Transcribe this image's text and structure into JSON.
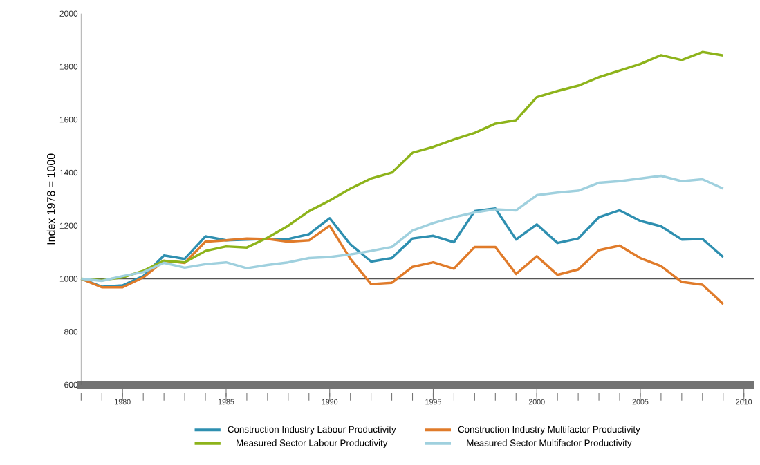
{
  "chart_data": {
    "type": "line",
    "ylabel": "Index 1978 = 1000",
    "x": [
      1978,
      1979,
      1980,
      1981,
      1982,
      1983,
      1984,
      1985,
      1986,
      1987,
      1988,
      1989,
      1990,
      1991,
      1992,
      1993,
      1994,
      1995,
      1996,
      1997,
      1998,
      1999,
      2000,
      2001,
      2002,
      2003,
      2004,
      2005,
      2006,
      2007,
      2008,
      2009
    ],
    "series": [
      {
        "name": "Construction Industry Labour Productivity",
        "color": "#2e8fb0",
        "values": [
          1000,
          970,
          975,
          1010,
          1088,
          1075,
          1160,
          1145,
          1148,
          1150,
          1150,
          1168,
          1228,
          1130,
          1065,
          1078,
          1152,
          1162,
          1138,
          1255,
          1265,
          1148,
          1205,
          1135,
          1152,
          1232,
          1258,
          1218,
          1198,
          1148,
          1150,
          1082
        ]
      },
      {
        "name": "Construction Industry Multifactor Productivity",
        "color": "#e07b2a",
        "values": [
          1000,
          968,
          968,
          1005,
          1068,
          1060,
          1140,
          1145,
          1152,
          1150,
          1140,
          1145,
          1200,
          1075,
          980,
          985,
          1045,
          1062,
          1038,
          1120,
          1120,
          1018,
          1085,
          1015,
          1035,
          1108,
          1125,
          1078,
          1048,
          988,
          978,
          905
        ]
      },
      {
        "name": "Measured Sector Labour Productivity",
        "color": "#8db31a",
        "values": [
          1000,
          995,
          1005,
          1030,
          1068,
          1062,
          1105,
          1122,
          1118,
          1155,
          1200,
          1255,
          1295,
          1340,
          1378,
          1400,
          1475,
          1497,
          1525,
          1550,
          1585,
          1598,
          1685,
          1708,
          1728,
          1760,
          1785,
          1810,
          1843,
          1825,
          1855,
          1842
        ]
      },
      {
        "name": "Measured Sector Multifactor Productivity",
        "color": "#9fd0de",
        "values": [
          1000,
          992,
          1010,
          1025,
          1060,
          1042,
          1055,
          1062,
          1040,
          1052,
          1062,
          1078,
          1082,
          1092,
          1105,
          1120,
          1182,
          1210,
          1232,
          1250,
          1262,
          1258,
          1315,
          1325,
          1332,
          1362,
          1368,
          1378,
          1388,
          1368,
          1375,
          1340
        ]
      }
    ],
    "xlim": [
      1978,
      2010.5
    ],
    "ylim": [
      600,
      2000
    ],
    "xticks": [
      1980,
      1985,
      1990,
      1995,
      2000,
      2005,
      2010
    ],
    "yticks": [
      600,
      800,
      1000,
      1200,
      1400,
      1600,
      1800,
      2000
    ],
    "ref_lines": [
      {
        "axis": "y",
        "value": 1000,
        "color": "#555555"
      }
    ],
    "grid": false,
    "legend": "bottom",
    "marker": "none",
    "line_style": "solid"
  }
}
